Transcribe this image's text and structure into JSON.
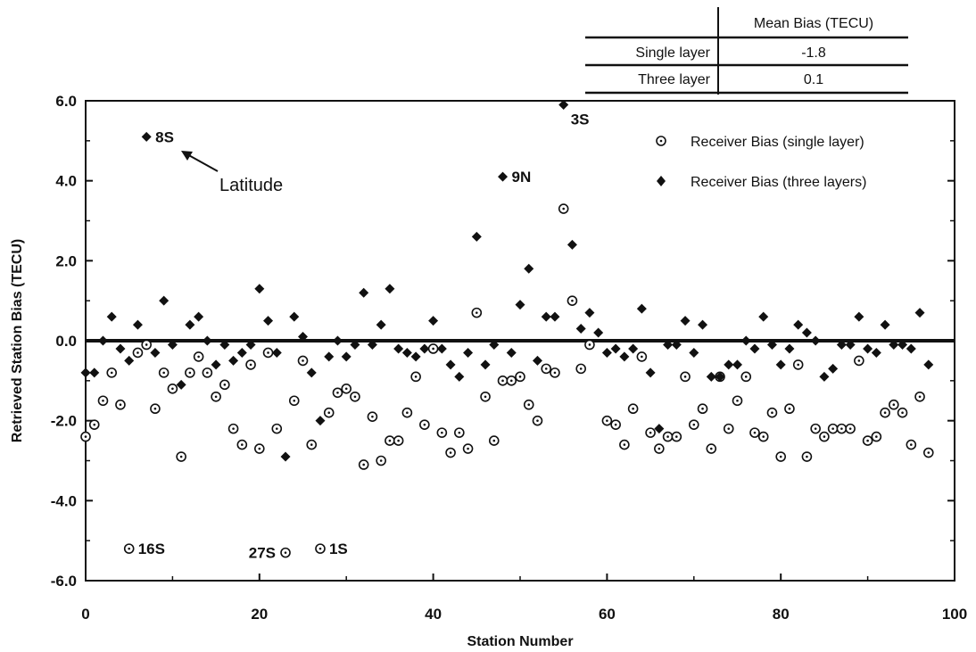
{
  "chart_data": {
    "type": "scatter",
    "xlabel": "Station Number",
    "ylabel": "Retrieved Station Bias (TECU)",
    "xlim": [
      0,
      100
    ],
    "ylim": [
      -6.0,
      6.0
    ],
    "x_ticks": [
      0,
      20,
      40,
      60,
      80,
      100
    ],
    "x_tick_labels": [
      "0",
      "20",
      "40",
      "60",
      "80",
      "100"
    ],
    "y_ticks": [
      -6,
      -4,
      -2,
      0,
      2,
      4,
      6
    ],
    "y_tick_labels": [
      "-6.0",
      "-4.0",
      "-2.0",
      "0.0",
      "2.0",
      "4.0",
      "6.0"
    ],
    "grid": false,
    "legend_position": "top-right",
    "reference_line_y": 0,
    "series": [
      {
        "name": "Receiver Bias (single layer)",
        "marker": "circle-dot",
        "points": [
          [
            0,
            -2.4
          ],
          [
            1,
            -2.1
          ],
          [
            2,
            -1.5
          ],
          [
            3,
            -0.8
          ],
          [
            4,
            -1.6
          ],
          [
            6,
            -0.3
          ],
          [
            7,
            -0.1
          ],
          [
            8,
            -1.7
          ],
          [
            9,
            -0.8
          ],
          [
            10,
            -1.2
          ],
          [
            11,
            -2.9
          ],
          [
            12,
            -0.8
          ],
          [
            13,
            -0.4
          ],
          [
            14,
            -0.8
          ],
          [
            15,
            -1.4
          ],
          [
            16,
            -1.1
          ],
          [
            17,
            -2.2
          ],
          [
            18,
            -2.6
          ],
          [
            19,
            -0.6
          ],
          [
            20,
            -2.7
          ],
          [
            21,
            -0.3
          ],
          [
            22,
            -2.2
          ],
          [
            24,
            -1.5
          ],
          [
            25,
            -0.5
          ],
          [
            26,
            -2.6
          ],
          [
            28,
            -1.8
          ],
          [
            29,
            -1.3
          ],
          [
            30,
            -1.2
          ],
          [
            31,
            -1.4
          ],
          [
            32,
            -3.1
          ],
          [
            33,
            -1.9
          ],
          [
            34,
            -3.0
          ],
          [
            35,
            -2.5
          ],
          [
            36,
            -2.5
          ],
          [
            37,
            -1.8
          ],
          [
            38,
            -0.9
          ],
          [
            39,
            -2.1
          ],
          [
            40,
            -0.2
          ],
          [
            41,
            -2.3
          ],
          [
            42,
            -2.8
          ],
          [
            43,
            -2.3
          ],
          [
            44,
            -2.7
          ],
          [
            45,
            0.7
          ],
          [
            46,
            -1.4
          ],
          [
            47,
            -2.5
          ],
          [
            48,
            -1.0
          ],
          [
            49,
            -1.0
          ],
          [
            50,
            -0.9
          ],
          [
            51,
            -1.6
          ],
          [
            52,
            -2.0
          ],
          [
            53,
            -0.7
          ],
          [
            54,
            -0.8
          ],
          [
            55,
            3.3
          ],
          [
            56,
            1.0
          ],
          [
            57,
            -0.7
          ],
          [
            58,
            -0.1
          ],
          [
            60,
            -2.0
          ],
          [
            61,
            -2.1
          ],
          [
            62,
            -2.6
          ],
          [
            63,
            -1.7
          ],
          [
            64,
            -0.4
          ],
          [
            65,
            -2.3
          ],
          [
            66,
            -2.7
          ],
          [
            67,
            -2.4
          ],
          [
            68,
            -2.4
          ],
          [
            69,
            -0.9
          ],
          [
            70,
            -2.1
          ],
          [
            71,
            -1.7
          ],
          [
            72,
            -2.7
          ],
          [
            73,
            -0.9
          ],
          [
            74,
            -2.2
          ],
          [
            75,
            -1.5
          ],
          [
            76,
            -0.9
          ],
          [
            77,
            -2.3
          ],
          [
            78,
            -2.4
          ],
          [
            79,
            -1.8
          ],
          [
            80,
            -2.9
          ],
          [
            81,
            -1.7
          ],
          [
            82,
            -0.6
          ],
          [
            83,
            -2.9
          ],
          [
            84,
            -2.2
          ],
          [
            85,
            -2.4
          ],
          [
            86,
            -2.2
          ],
          [
            87,
            -2.2
          ],
          [
            88,
            -2.2
          ],
          [
            89,
            -0.5
          ],
          [
            90,
            -2.5
          ],
          [
            91,
            -2.4
          ],
          [
            92,
            -1.8
          ],
          [
            93,
            -1.6
          ],
          [
            94,
            -1.8
          ],
          [
            95,
            -2.6
          ],
          [
            96,
            -1.4
          ],
          [
            97,
            -2.8
          ],
          [
            5,
            -5.2
          ],
          [
            23,
            -5.3
          ],
          [
            27,
            -5.2
          ]
        ]
      },
      {
        "name": "Receiver Bias (three layers)",
        "marker": "diamond",
        "points": [
          [
            0,
            -0.8
          ],
          [
            1,
            -0.8
          ],
          [
            2,
            0.0
          ],
          [
            3,
            0.6
          ],
          [
            4,
            -0.2
          ],
          [
            5,
            -0.5
          ],
          [
            6,
            0.4
          ],
          [
            7,
            5.1
          ],
          [
            8,
            -0.3
          ],
          [
            9,
            1.0
          ],
          [
            10,
            -0.1
          ],
          [
            11,
            -1.1
          ],
          [
            12,
            0.4
          ],
          [
            13,
            0.6
          ],
          [
            14,
            0.0
          ],
          [
            15,
            -0.6
          ],
          [
            16,
            -0.1
          ],
          [
            17,
            -0.5
          ],
          [
            18,
            -0.3
          ],
          [
            19,
            -0.1
          ],
          [
            20,
            1.3
          ],
          [
            21,
            0.5
          ],
          [
            22,
            -0.3
          ],
          [
            23,
            -2.9
          ],
          [
            24,
            0.6
          ],
          [
            25,
            0.1
          ],
          [
            26,
            -0.8
          ],
          [
            27,
            -2.0
          ],
          [
            28,
            -0.4
          ],
          [
            29,
            0.0
          ],
          [
            30,
            -0.4
          ],
          [
            31,
            -0.1
          ],
          [
            32,
            1.2
          ],
          [
            33,
            -0.1
          ],
          [
            34,
            0.4
          ],
          [
            35,
            1.3
          ],
          [
            36,
            -0.2
          ],
          [
            37,
            -0.3
          ],
          [
            38,
            -0.4
          ],
          [
            39,
            -0.2
          ],
          [
            40,
            0.5
          ],
          [
            41,
            -0.2
          ],
          [
            42,
            -0.6
          ],
          [
            43,
            -0.9
          ],
          [
            44,
            -0.3
          ],
          [
            45,
            2.6
          ],
          [
            46,
            -0.6
          ],
          [
            47,
            -0.1
          ],
          [
            48,
            4.1
          ],
          [
            49,
            -0.3
          ],
          [
            50,
            0.9
          ],
          [
            51,
            1.8
          ],
          [
            52,
            -0.5
          ],
          [
            53,
            0.6
          ],
          [
            54,
            0.6
          ],
          [
            55,
            5.9
          ],
          [
            56,
            2.4
          ],
          [
            57,
            0.3
          ],
          [
            58,
            0.7
          ],
          [
            59,
            0.2
          ],
          [
            60,
            -0.3
          ],
          [
            61,
            -0.2
          ],
          [
            62,
            -0.4
          ],
          [
            63,
            -0.2
          ],
          [
            64,
            0.8
          ],
          [
            65,
            -0.8
          ],
          [
            66,
            -2.2
          ],
          [
            67,
            -0.1
          ],
          [
            68,
            -0.1
          ],
          [
            69,
            0.5
          ],
          [
            70,
            -0.3
          ],
          [
            71,
            0.4
          ],
          [
            72,
            -0.9
          ],
          [
            73,
            -0.9
          ],
          [
            74,
            -0.6
          ],
          [
            75,
            -0.6
          ],
          [
            76,
            0.0
          ],
          [
            77,
            -0.2
          ],
          [
            78,
            0.6
          ],
          [
            79,
            -0.1
          ],
          [
            80,
            -0.6
          ],
          [
            81,
            -0.2
          ],
          [
            82,
            0.4
          ],
          [
            83,
            0.2
          ],
          [
            84,
            0.0
          ],
          [
            85,
            -0.9
          ],
          [
            86,
            -0.7
          ],
          [
            87,
            -0.1
          ],
          [
            88,
            -0.1
          ],
          [
            89,
            0.6
          ],
          [
            90,
            -0.2
          ],
          [
            91,
            -0.3
          ],
          [
            92,
            0.4
          ],
          [
            93,
            -0.1
          ],
          [
            94,
            -0.1
          ],
          [
            95,
            -0.2
          ],
          [
            96,
            0.7
          ],
          [
            97,
            -0.6
          ]
        ]
      }
    ],
    "annotations": [
      {
        "text": "8S",
        "x": 7,
        "y": 5.1,
        "side": "right"
      },
      {
        "text": "3S",
        "x": 55,
        "y": 5.9,
        "side": "below"
      },
      {
        "text": "9N",
        "x": 48,
        "y": 4.1,
        "side": "right"
      },
      {
        "text": "16S",
        "x": 5,
        "y": -5.2,
        "side": "right"
      },
      {
        "text": "27S",
        "x": 23,
        "y": -5.3,
        "side": "left"
      },
      {
        "text": "1S",
        "x": 27,
        "y": -5.2,
        "side": "right"
      }
    ],
    "callout": {
      "text": "Latitude",
      "points_to": [
        11,
        4.8
      ]
    },
    "inset_table": {
      "header": [
        "",
        "Mean Bias (TECU)"
      ],
      "rows": [
        [
          "Single layer",
          "-1.8"
        ],
        [
          "Three layer",
          "0.1"
        ]
      ]
    }
  }
}
